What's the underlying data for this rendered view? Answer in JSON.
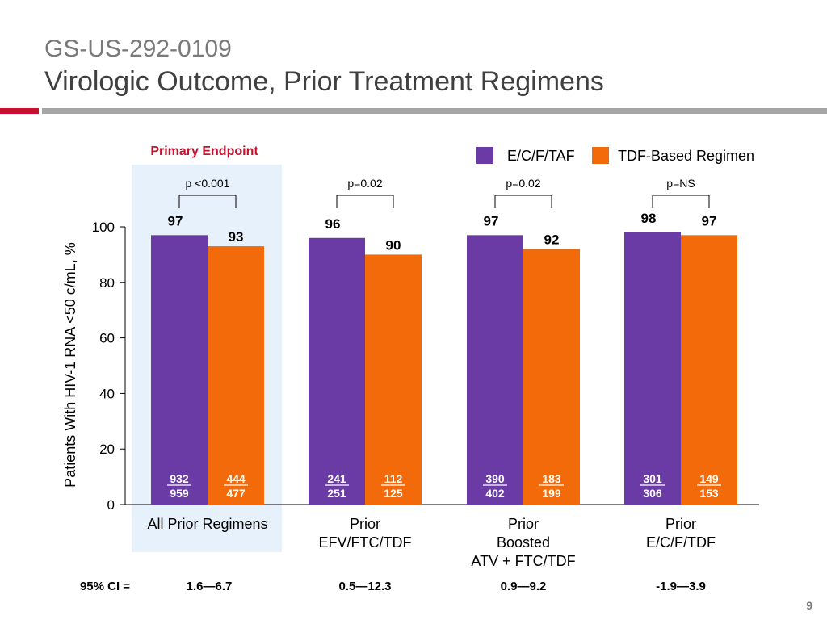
{
  "header": {
    "study_id": "GS-US-292-0109",
    "title": "Virologic Outcome, Prior Treatment Regimens"
  },
  "page_number": "9",
  "colors": {
    "series_1": "#6a3ba4",
    "series_2": "#f26a0a",
    "highlight": "#e7f1fb",
    "accent_red": "#c8102e",
    "rule_gray": "#a6a6a6"
  },
  "chart_data": {
    "type": "bar",
    "highlight_label": "Primary Endpoint",
    "ylabel": "Patients With HIV-1 RNA <50 c/mL, %",
    "xlabel": "",
    "ylim": [
      0,
      100
    ],
    "yticks": [
      "0",
      "20",
      "40",
      "60",
      "80",
      "100"
    ],
    "grid": false,
    "legend_position": "top-right",
    "categories": [
      {
        "lines": [
          "All Prior Regimens"
        ]
      },
      {
        "lines": [
          "Prior",
          "EFV/FTC/TDF"
        ]
      },
      {
        "lines": [
          "Prior",
          "Boosted",
          "ATV + FTC/TDF"
        ]
      },
      {
        "lines": [
          "Prior",
          "E/C/F/TDF"
        ]
      }
    ],
    "series": [
      {
        "name": "E/C/F/TAF",
        "values": [
          97,
          96,
          97,
          98
        ],
        "labels": [
          "97",
          "96",
          "97",
          "98"
        ],
        "numerators": [
          "932",
          "241",
          "390",
          "301"
        ],
        "denominators": [
          "959",
          "251",
          "402",
          "306"
        ]
      },
      {
        "name": "TDF-Based Regimen",
        "values": [
          93,
          90,
          92,
          97
        ],
        "labels": [
          "93",
          "90",
          "92",
          "97"
        ],
        "numerators": [
          "444",
          "112",
          "183",
          "149"
        ],
        "denominators": [
          "477",
          "125",
          "199",
          "153"
        ]
      }
    ],
    "p_values": [
      "p <0.001",
      "p=0.02",
      "p=0.02",
      "p=NS"
    ],
    "ci_label": "95% CI =",
    "ci_values": [
      "1.6—6.7",
      "0.5—12.3",
      "0.9—9.2",
      "-1.9—3.9"
    ]
  }
}
